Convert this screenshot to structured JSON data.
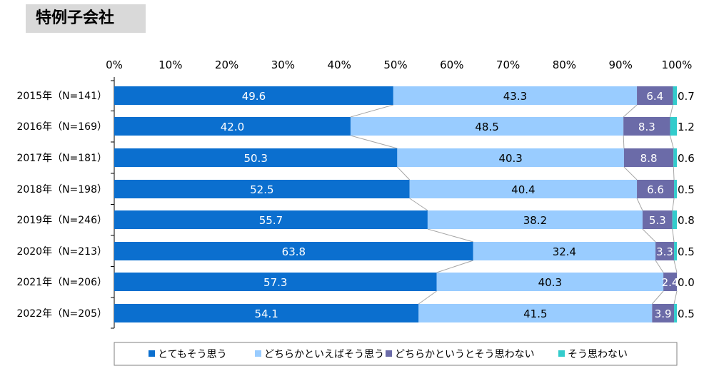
{
  "page": {
    "title": "特例子会社"
  },
  "chart_data": {
    "type": "bar",
    "orientation": "horizontal",
    "stacked": true,
    "title": "特例子会社",
    "categories": [
      "2015年（N=141）",
      "2016年（N=169）",
      "2017年（N=181）",
      "2018年（N=198）",
      "2019年（N=246）",
      "2020年（N=213）",
      "2021年（N=206）",
      "2022年（N=205）"
    ],
    "series": [
      {
        "name": "とてもそう思う",
        "color": "#0b6fcf",
        "values": [
          49.6,
          42.0,
          50.3,
          52.5,
          55.7,
          63.8,
          57.3,
          54.1
        ],
        "labels": [
          "49.6",
          "42.0",
          "50.3",
          "52.5",
          "55.7",
          "63.8",
          "57.3",
          "54.1"
        ]
      },
      {
        "name": "どちらかといえばそう思う",
        "color": "#99ccff",
        "values": [
          43.3,
          48.5,
          40.3,
          40.4,
          38.2,
          32.4,
          40.3,
          41.5
        ],
        "labels": [
          "43.3",
          "48.5",
          "40.3",
          "40.4",
          "38.2",
          "32.4",
          "40.3",
          "41.5"
        ]
      },
      {
        "name": "どちらかというとそう思わない",
        "color": "#6b6ba8",
        "values": [
          6.4,
          8.3,
          8.8,
          6.6,
          5.3,
          3.3,
          2.4,
          3.9
        ],
        "labels": [
          "6.4",
          "8.3",
          "8.8",
          "6.6",
          "5.3",
          "3.3",
          "2.4",
          "3.9"
        ]
      },
      {
        "name": "そう思わない",
        "color": "#33cccc",
        "values": [
          0.7,
          1.2,
          0.6,
          0.5,
          0.8,
          0.5,
          0.0,
          0.5
        ],
        "labels": [
          "0.7",
          "1.2",
          "0.6",
          "0.5",
          "0.8",
          "0.5",
          "0.0",
          "0.5"
        ]
      }
    ],
    "xlim": [
      0,
      100
    ],
    "x_ticks": [
      "0%",
      "10%",
      "20%",
      "30%",
      "40%",
      "50%",
      "60%",
      "70%",
      "80%",
      "90%",
      "100%"
    ],
    "axis_position": "top",
    "series_lines": true,
    "grid": false,
    "legend_position": "bottom"
  }
}
